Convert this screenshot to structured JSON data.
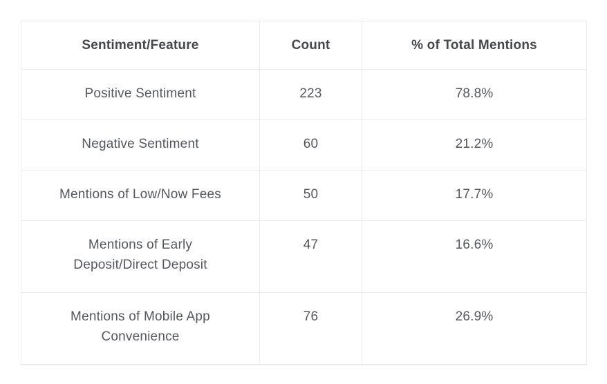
{
  "table": {
    "columns": [
      "Sentiment/Feature",
      "Count",
      "% of Total Mentions"
    ],
    "rows": [
      {
        "feature": "Positive Sentiment",
        "count": "223",
        "percent": "78.8%"
      },
      {
        "feature": "Negative Sentiment",
        "count": "60",
        "percent": "21.2%"
      },
      {
        "feature": "Mentions of Low/Now Fees",
        "count": "50",
        "percent": "17.7%"
      },
      {
        "feature": "Mentions of Early\nDeposit/Direct Deposit",
        "count": "47",
        "percent": "16.6%"
      },
      {
        "feature": "Mentions of Mobile App\nConvenience",
        "count": "76",
        "percent": "26.9%"
      }
    ]
  },
  "chart_data": {
    "type": "table",
    "columns": [
      "Sentiment/Feature",
      "Count",
      "% of Total Mentions"
    ],
    "rows": [
      [
        "Positive Sentiment",
        223,
        "78.8%"
      ],
      [
        "Negative Sentiment",
        60,
        "21.2%"
      ],
      [
        "Mentions of Low/Now Fees",
        50,
        "17.7%"
      ],
      [
        "Mentions of Early Deposit/Direct Deposit",
        47,
        "16.6%"
      ],
      [
        "Mentions of Mobile App Convenience",
        76,
        "26.9%"
      ]
    ]
  },
  "colors": {
    "header_text": "#45474c",
    "body_text": "#55575c",
    "border": "#ececec",
    "background": "#ffffff"
  }
}
